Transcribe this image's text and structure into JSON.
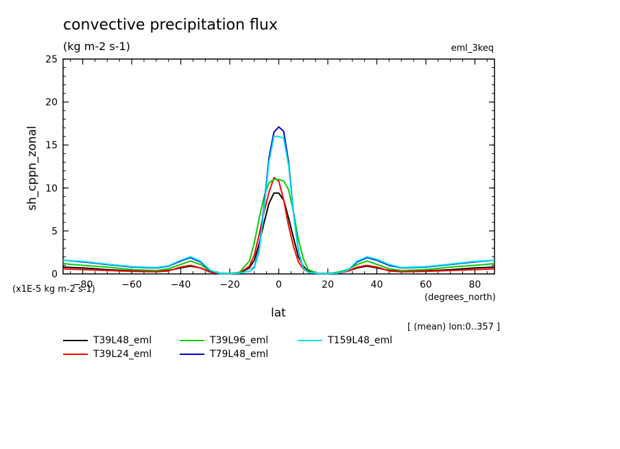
{
  "header": {
    "title": "convective precipitation flux",
    "units": "(kg m-2 s-1)",
    "experiment": "eml_3keq"
  },
  "axes": {
    "ylabel": "sh_cppn_zonal",
    "scale_note": "(x1E-5 kg m-2 s-1)",
    "xlabel": "lat",
    "xunit": "(degrees_north)",
    "averaging_note": "[ (mean) lon:0..357 ]"
  },
  "chart_data": {
    "type": "line",
    "title": "convective precipitation flux",
    "xlabel": "lat",
    "ylabel": "sh_cppn_zonal",
    "xlim": [
      -88,
      88
    ],
    "ylim": [
      0,
      25
    ],
    "xticks": [
      -80,
      -60,
      -40,
      -20,
      0,
      20,
      40,
      60,
      80
    ],
    "yticks": [
      0,
      5,
      10,
      15,
      20,
      25
    ],
    "grid": false,
    "legend_position": "bottom",
    "series": [
      {
        "name": "T39L48_eml",
        "color": "#000000",
        "x": [
          -88,
          -80,
          -70,
          -60,
          -50,
          -45,
          -40,
          -36,
          -32,
          -28,
          -24,
          -20,
          -16,
          -12,
          -10,
          -8,
          -6,
          -4,
          -2,
          0,
          2,
          4,
          6,
          8,
          10,
          12,
          16,
          20,
          24,
          28,
          32,
          36,
          40,
          45,
          50,
          60,
          70,
          80,
          88
        ],
        "y": [
          0.8,
          0.7,
          0.5,
          0.35,
          0.3,
          0.4,
          0.7,
          0.9,
          0.7,
          0.25,
          0.05,
          0.05,
          0.1,
          0.7,
          1.6,
          3.5,
          6.0,
          8.2,
          9.4,
          9.4,
          8.6,
          6.5,
          4.2,
          2.0,
          0.9,
          0.3,
          0.05,
          0.05,
          0.1,
          0.3,
          0.7,
          0.9,
          0.7,
          0.4,
          0.3,
          0.35,
          0.5,
          0.7,
          0.8
        ]
      },
      {
        "name": "T39L24_eml",
        "color": "#ff0000",
        "x": [
          -88,
          -80,
          -70,
          -60,
          -50,
          -45,
          -40,
          -36,
          -32,
          -28,
          -24,
          -20,
          -16,
          -12,
          -10,
          -8,
          -6,
          -4,
          -2,
          0,
          2,
          4,
          6,
          8,
          10,
          12,
          16,
          20,
          24,
          28,
          32,
          36,
          40,
          45,
          50,
          60,
          70,
          80,
          88
        ],
        "y": [
          0.6,
          0.5,
          0.4,
          0.3,
          0.25,
          0.35,
          0.8,
          1.0,
          0.7,
          0.2,
          0.05,
          0.05,
          0.1,
          0.9,
          2.2,
          4.6,
          7.2,
          9.5,
          11.2,
          10.8,
          8.6,
          5.6,
          3.2,
          1.4,
          0.6,
          0.2,
          0.05,
          0.05,
          0.1,
          0.3,
          0.8,
          1.0,
          0.8,
          0.35,
          0.25,
          0.3,
          0.4,
          0.5,
          0.6
        ]
      },
      {
        "name": "T39L96_eml",
        "color": "#00cc00",
        "x": [
          -88,
          -80,
          -70,
          -60,
          -50,
          -45,
          -40,
          -36,
          -32,
          -28,
          -24,
          -20,
          -16,
          -12,
          -10,
          -8,
          -6,
          -4,
          -2,
          0,
          2,
          4,
          6,
          8,
          10,
          12,
          16,
          20,
          24,
          28,
          32,
          36,
          40,
          45,
          50,
          60,
          70,
          80,
          88
        ],
        "y": [
          1.2,
          1.0,
          0.8,
          0.5,
          0.4,
          0.6,
          1.1,
          1.5,
          1.1,
          0.35,
          0.1,
          0.05,
          0.2,
          1.5,
          3.6,
          6.5,
          9.0,
          10.6,
          11.0,
          11.0,
          10.8,
          9.8,
          7.2,
          4.0,
          1.8,
          0.5,
          0.05,
          0.05,
          0.2,
          0.5,
          1.1,
          1.5,
          1.1,
          0.6,
          0.4,
          0.5,
          0.8,
          1.0,
          1.2
        ]
      },
      {
        "name": "T79L48_eml",
        "color": "#0000cc",
        "x": [
          -88,
          -80,
          -70,
          -60,
          -50,
          -45,
          -40,
          -36,
          -32,
          -28,
          -24,
          -20,
          -16,
          -12,
          -10,
          -8,
          -6,
          -4,
          -2,
          0,
          2,
          4,
          6,
          8,
          10,
          12,
          16,
          20,
          24,
          28,
          32,
          36,
          40,
          45,
          50,
          60,
          70,
          80,
          88
        ],
        "y": [
          1.6,
          1.4,
          1.1,
          0.8,
          0.7,
          0.9,
          1.5,
          1.9,
          1.4,
          0.4,
          0.05,
          0.05,
          0.1,
          0.3,
          0.8,
          2.8,
          8.0,
          13.5,
          16.5,
          17.1,
          16.6,
          13.0,
          7.2,
          2.6,
          0.7,
          0.2,
          0.05,
          0.05,
          0.1,
          0.4,
          1.4,
          1.9,
          1.6,
          1.0,
          0.7,
          0.8,
          1.1,
          1.4,
          1.6
        ]
      },
      {
        "name": "T159L48_eml",
        "color": "#00e5ee",
        "x": [
          -88,
          -80,
          -70,
          -60,
          -50,
          -45,
          -40,
          -36,
          -32,
          -28,
          -24,
          -20,
          -16,
          -12,
          -10,
          -8,
          -6,
          -4,
          -2,
          0,
          2,
          4,
          6,
          8,
          10,
          12,
          16,
          20,
          24,
          28,
          32,
          36,
          40,
          45,
          50,
          60,
          70,
          80,
          88
        ],
        "y": [
          1.6,
          1.45,
          1.15,
          0.85,
          0.75,
          0.95,
          1.6,
          2.0,
          1.5,
          0.45,
          0.05,
          0.05,
          0.1,
          0.3,
          0.7,
          2.6,
          7.6,
          13.0,
          16.0,
          16.0,
          15.8,
          12.6,
          7.0,
          2.5,
          0.7,
          0.2,
          0.05,
          0.05,
          0.1,
          0.4,
          1.5,
          2.0,
          1.7,
          1.1,
          0.75,
          0.85,
          1.15,
          1.45,
          1.6
        ]
      }
    ]
  }
}
